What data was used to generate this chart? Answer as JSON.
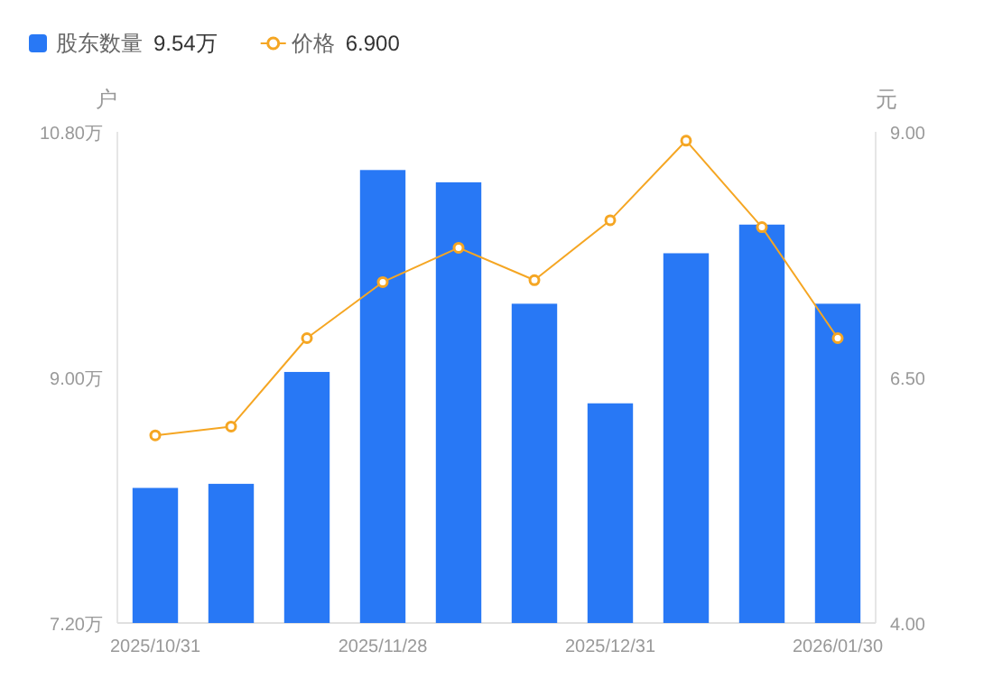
{
  "chart_data": {
    "type": "bar",
    "ylabel": "户",
    "y2label": "元",
    "categories": [
      "2025/10/31",
      null,
      null,
      "2025/11/28",
      null,
      null,
      "2025/12/31",
      null,
      null,
      "2026/01/30"
    ],
    "series": [
      {
        "name": "股东数量",
        "color": "#2878f5",
        "values": [
          8.19,
          8.22,
          9.04,
          10.52,
          10.43,
          9.54,
          8.81,
          9.91,
          10.12,
          9.54
        ]
      },
      {
        "name": "价格",
        "type": "line",
        "axis": "y2",
        "color": "#f5a623",
        "marker": "circle",
        "values": [
          5.91,
          6.0,
          6.9,
          7.47,
          7.82,
          7.49,
          8.1,
          8.91,
          8.03,
          6.9
        ]
      }
    ],
    "annotations": [
      "9.54万",
      "6.900"
    ],
    "ylim": [
      7.2,
      10.8
    ],
    "yticks": [
      {
        "value": 7.2,
        "label": "7.20万"
      },
      {
        "value": 9.0,
        "label": "9.00万"
      },
      {
        "value": 10.8,
        "label": "10.80万"
      }
    ],
    "y2lim": [
      4.0,
      9.0
    ],
    "y2ticks": [
      {
        "value": 4.0,
        "label": "4.00"
      },
      {
        "value": 6.5,
        "label": "6.50"
      },
      {
        "value": 9.0,
        "label": "9.00"
      }
    ],
    "legend": "top left",
    "grid": false
  }
}
